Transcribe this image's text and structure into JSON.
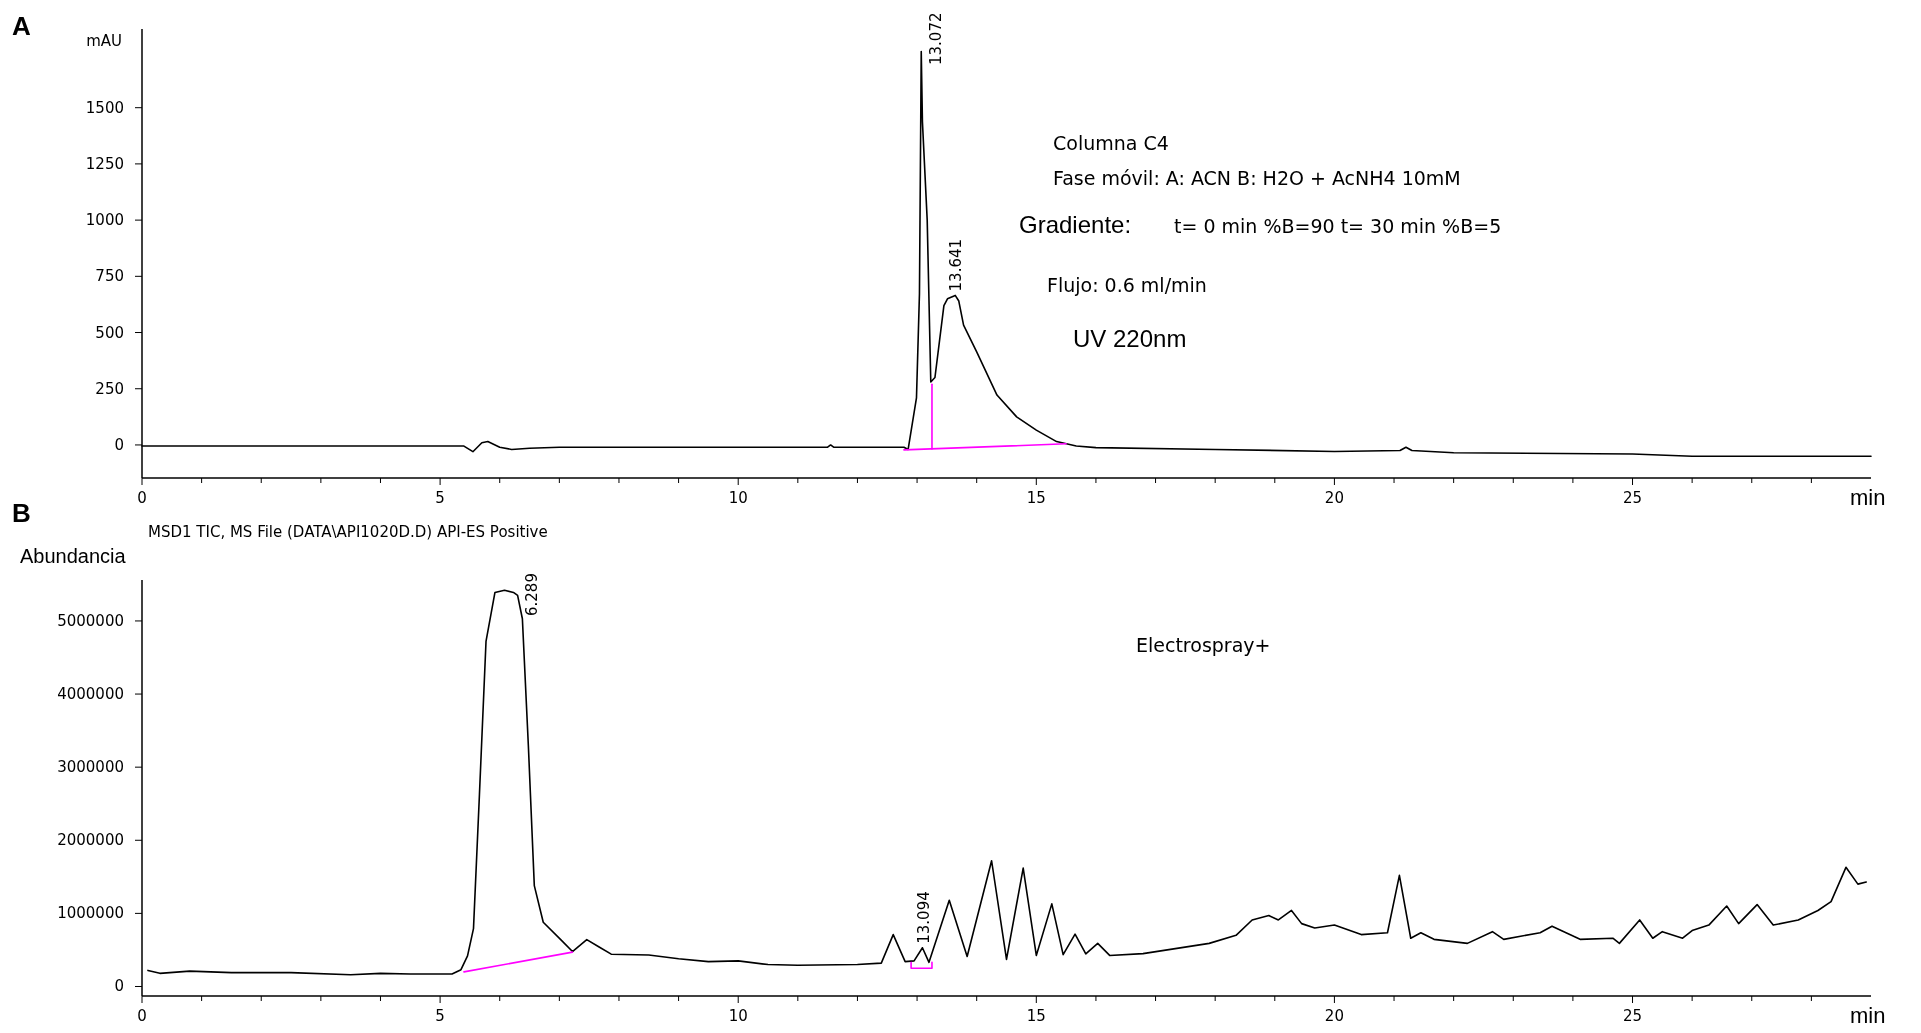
{
  "chart_data": [
    {
      "type": "line",
      "title": "A",
      "xlabel": "min",
      "ylabel": "mAU",
      "xlim": [
        0,
        29
      ],
      "ylim": [
        -147,
        1850
      ],
      "xticks": [
        0,
        {
          "value": 1,
          "label": null
        },
        {
          "value": 2,
          "label": null
        },
        {
          "value": 3,
          "label": null
        },
        {
          "value": 4,
          "label": null
        },
        5,
        {
          "value": 6,
          "label": null
        },
        {
          "value": 7,
          "label": null
        },
        {
          "value": 8,
          "label": null
        },
        {
          "value": 9,
          "label": null
        },
        10,
        {
          "value": 11,
          "label": null
        },
        {
          "value": 12,
          "label": null
        },
        {
          "value": 13,
          "label": null
        },
        {
          "value": 14,
          "label": null
        },
        15,
        {
          "value": 16,
          "label": null
        },
        {
          "value": 17,
          "label": null
        },
        {
          "value": 18,
          "label": null
        },
        {
          "value": 19,
          "label": null
        },
        20,
        {
          "value": 21,
          "label": null
        },
        {
          "value": 22,
          "label": null
        },
        {
          "value": 23,
          "label": null
        },
        {
          "value": 24,
          "label": null
        },
        25,
        {
          "value": 26,
          "label": null
        },
        {
          "value": 27,
          "label": null
        },
        {
          "value": 28,
          "label": null
        }
      ],
      "yticks": [
        0,
        250,
        500,
        750,
        1000,
        1250,
        1500
      ],
      "series": [
        {
          "type": "line",
          "color": "#000000",
          "x": [
            0,
            5.4,
            5.55,
            5.7,
            5.8,
            6.0,
            6.2,
            6.5,
            7,
            11.5,
            11.55,
            11.6,
            12.78,
            12.85,
            12.99,
            13.04,
            13.07,
            13.09,
            13.17,
            13.23,
            13.3,
            13.45,
            13.51,
            13.64,
            13.7,
            13.78,
            14.0,
            14.34,
            14.67,
            15.0,
            15.34,
            15.67,
            16,
            18,
            20,
            21.1,
            21.2,
            21.3,
            22,
            25,
            26,
            29
          ],
          "values": [
            -5,
            -5,
            -30,
            10,
            15,
            -10,
            -20,
            -15,
            -10,
            -10,
            0,
            -10,
            -10,
            -20,
            209,
            672,
            1750,
            1437,
            1000,
            280,
            300,
            620,
            650,
            665,
            640,
            533,
            414,
            222,
            125,
            66,
            15,
            -5,
            -12,
            -20,
            -29,
            -25,
            -10,
            -25,
            -35,
            -40,
            -50,
            -50
          ]
        },
        {
          "type": "line",
          "color": "#ff00ff",
          "x": [
            12.78,
            15.5
          ],
          "values": [
            -22,
            5
          ]
        },
        {
          "type": "line",
          "color": "#ff00ff",
          "x": [
            13.25,
            13.25
          ],
          "values": [
            -18,
            270
          ]
        }
      ],
      "annotations": [
        {
          "text": "13.072",
          "x": 13.072,
          "y": 1750
        },
        {
          "text": "13.641",
          "x": 13.641,
          "y": 665
        },
        "Columna C4",
        "Fase móvil: A: ACN B: H2O + AcNH4 10mM",
        "Gradiente:",
        "t= 0 min %B=90 t= 30 min %B=5",
        "Flujo: 0.6 ml/min",
        "UV 220nm"
      ]
    },
    {
      "type": "line",
      "title": "B",
      "subtitle": "MSD1 TIC, MS File (DATA\\API1020D.D)  API-ES Positive",
      "xlabel": "min",
      "ylabel": "Abundancia",
      "xlim": [
        0,
        29
      ],
      "ylim": [
        -130000,
        5560000
      ],
      "xticks": [
        0,
        {
          "value": 1,
          "label": null
        },
        {
          "value": 2,
          "label": null
        },
        {
          "value": 3,
          "label": null
        },
        {
          "value": 4,
          "label": null
        },
        5,
        {
          "value": 6,
          "label": null
        },
        {
          "value": 7,
          "label": null
        },
        {
          "value": 8,
          "label": null
        },
        {
          "value": 9,
          "label": null
        },
        10,
        {
          "value": 11,
          "label": null
        },
        {
          "value": 12,
          "label": null
        },
        {
          "value": 13,
          "label": null
        },
        {
          "value": 14,
          "label": null
        },
        15,
        {
          "value": 16,
          "label": null
        },
        {
          "value": 17,
          "label": null
        },
        {
          "value": 18,
          "label": null
        },
        {
          "value": 19,
          "label": null
        },
        20,
        {
          "value": 21,
          "label": null
        },
        {
          "value": 22,
          "label": null
        },
        {
          "value": 23,
          "label": null
        },
        {
          "value": 24,
          "label": null
        },
        25,
        {
          "value": 26,
          "label": null
        },
        {
          "value": 27,
          "label": null
        },
        {
          "value": 28,
          "label": null
        }
      ],
      "yticks": [
        0,
        1000000,
        2000000,
        3000000,
        4000000,
        5000000
      ],
      "series": [
        {
          "type": "line",
          "color": "#000000",
          "x": [
            0.1,
            0.3,
            0.8,
            1.5,
            2.5,
            3.5,
            4,
            4.5,
            5.2,
            5.35,
            5.46,
            5.56,
            5.66,
            5.77,
            5.92,
            6.08,
            6.23,
            6.3,
            6.38,
            6.48,
            6.58,
            6.73,
            7.04,
            7.22,
            7.46,
            7.66,
            7.87,
            8.5,
            9,
            9.5,
            10,
            10.5,
            11,
            12,
            12.4,
            12.6,
            12.8,
            12.95,
            13.09,
            13.2,
            13.54,
            13.84,
            14.25,
            14.5,
            14.78,
            15.0,
            15.26,
            15.45,
            15.65,
            15.83,
            16.03,
            16.23,
            16.79,
            17.9,
            18.35,
            18.62,
            18.9,
            19.06,
            19.28,
            19.45,
            19.67,
            20.0,
            20.45,
            20.89,
            21.09,
            21.28,
            21.45,
            21.67,
            22.23,
            22.65,
            22.84,
            23.45,
            23.65,
            24.12,
            24.67,
            24.78,
            25.12,
            25.34,
            25.5,
            25.84,
            26.0,
            26.28,
            26.58,
            26.78,
            27.09,
            27.36,
            27.78,
            28.11,
            28.33,
            28.58,
            28.78,
            28.92
          ],
          "values": [
            220000,
            180000,
            210000,
            190000,
            190000,
            160000,
            180000,
            170000,
            170000,
            230000,
            418000,
            792000,
            2630000,
            4720000,
            5390000,
            5420000,
            5390000,
            5350000,
            5030000,
            3300000,
            1380000,
            878000,
            628000,
            478000,
            642000,
            543000,
            442000,
            430000,
            380000,
            340000,
            350000,
            300000,
            290000,
            300000,
            320000,
            710000,
            340000,
            350000,
            530000,
            330000,
            1180000,
            410000,
            1720000,
            370000,
            1620000,
            425000,
            1130000,
            435000,
            717000,
            445000,
            590000,
            425000,
            450000,
            590000,
            700000,
            910000,
            970000,
            910000,
            1040000,
            860000,
            800000,
            840000,
            710000,
            735000,
            1520000,
            660000,
            735000,
            645000,
            590000,
            750000,
            645000,
            735000,
            825000,
            645000,
            660000,
            590000,
            910000,
            660000,
            750000,
            660000,
            765000,
            840000,
            1100000,
            860000,
            1120000,
            840000,
            910000,
            1040000,
            1160000,
            1630000,
            1400000,
            1430000
          ]
        },
        {
          "type": "line",
          "color": "#ff00ff",
          "x": [
            5.4,
            7.22
          ],
          "values": [
            200000,
            470000
          ]
        },
        {
          "type": "line",
          "color": "#ff00ff",
          "x": [
            12.9,
            12.9,
            13.25,
            13.25
          ],
          "values": [
            330000,
            250000,
            250000,
            330000
          ]
        }
      ],
      "annotations": [
        {
          "text": "6.289",
          "x": 6.289,
          "y": 5350000
        },
        {
          "text": "13.094",
          "x": 13.094,
          "y": 530000
        },
        "Electrospray+"
      ]
    }
  ]
}
